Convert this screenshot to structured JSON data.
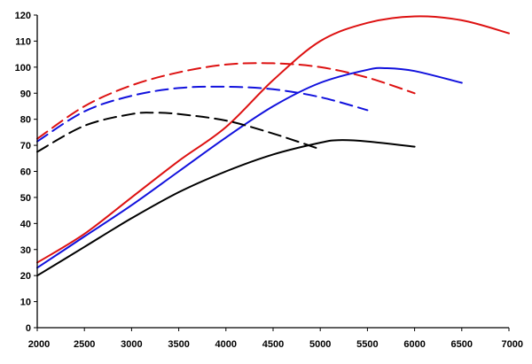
{
  "chart_data": {
    "type": "line",
    "title": "",
    "xlabel": "",
    "ylabel": "",
    "xlim": [
      2000,
      7000
    ],
    "ylim": [
      0,
      120
    ],
    "x_ticks": [
      2000,
      2500,
      3000,
      3500,
      4000,
      4500,
      5000,
      5500,
      6000,
      6500,
      7000
    ],
    "y_ticks": [
      0,
      10,
      20,
      30,
      40,
      50,
      60,
      70,
      80,
      90,
      100,
      110,
      120
    ],
    "grid": false,
    "legend": "none",
    "series": [
      {
        "color": "#dd1111",
        "dash": "solid",
        "points": [
          [
            2000,
            25
          ],
          [
            2500,
            36
          ],
          [
            3000,
            50
          ],
          [
            3500,
            64
          ],
          [
            4000,
            77
          ],
          [
            4500,
            95
          ],
          [
            5000,
            110
          ],
          [
            5500,
            117
          ],
          [
            6000,
            119.5
          ],
          [
            6500,
            118
          ],
          [
            7000,
            113
          ]
        ]
      },
      {
        "color": "#dd1111",
        "dash": "dashed",
        "points": [
          [
            2000,
            72.5
          ],
          [
            2500,
            85
          ],
          [
            3000,
            93
          ],
          [
            3500,
            98
          ],
          [
            4000,
            101
          ],
          [
            4500,
            101.5
          ],
          [
            5000,
            100
          ],
          [
            5500,
            96
          ],
          [
            6000,
            90
          ]
        ]
      },
      {
        "color": "#1111dd",
        "dash": "solid",
        "points": [
          [
            2000,
            23
          ],
          [
            2500,
            35
          ],
          [
            3000,
            47
          ],
          [
            3500,
            60
          ],
          [
            4000,
            73
          ],
          [
            4500,
            85
          ],
          [
            5000,
            94
          ],
          [
            5500,
            99
          ],
          [
            5700,
            99.6
          ],
          [
            6000,
            98.5
          ],
          [
            6500,
            94
          ]
        ]
      },
      {
        "color": "#1111dd",
        "dash": "dashed",
        "points": [
          [
            2000,
            71.5
          ],
          [
            2500,
            83
          ],
          [
            3000,
            89
          ],
          [
            3500,
            92
          ],
          [
            4000,
            92.5
          ],
          [
            4500,
            91.5
          ],
          [
            5000,
            88.5
          ],
          [
            5500,
            83.5
          ]
        ]
      },
      {
        "color": "#000000",
        "dash": "solid",
        "points": [
          [
            2000,
            20
          ],
          [
            2500,
            31
          ],
          [
            3000,
            42
          ],
          [
            3500,
            52
          ],
          [
            4000,
            60
          ],
          [
            4500,
            66.5
          ],
          [
            5000,
            71
          ],
          [
            5200,
            72
          ],
          [
            5500,
            71.5
          ],
          [
            6000,
            69.5
          ]
        ]
      },
      {
        "color": "#000000",
        "dash": "dashed",
        "points": [
          [
            2000,
            67.5
          ],
          [
            2500,
            77.5
          ],
          [
            3000,
            82
          ],
          [
            3250,
            82.5
          ],
          [
            3500,
            82
          ],
          [
            4000,
            79.5
          ],
          [
            4500,
            74.5
          ],
          [
            5000,
            68.5
          ]
        ]
      }
    ]
  }
}
